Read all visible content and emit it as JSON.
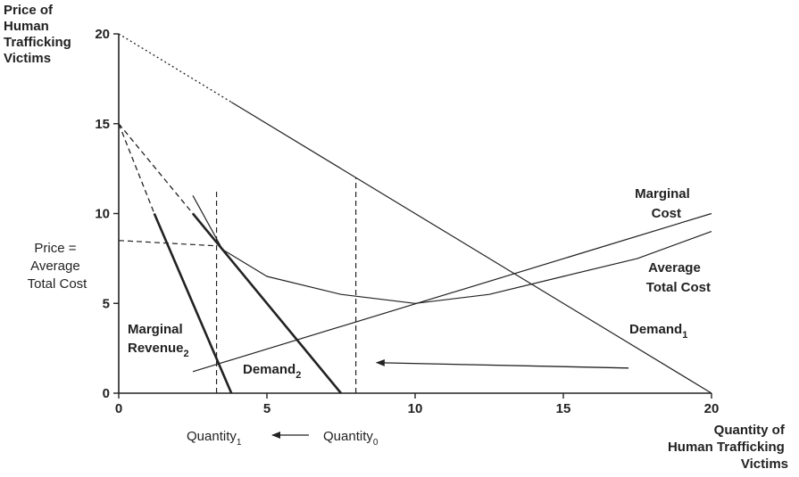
{
  "chart_data": {
    "type": "line",
    "ylabel_lines": [
      "Price of",
      "Human",
      "Trafficking",
      "Victims"
    ],
    "xlabel_lines": [
      "Quantity of",
      "Human Trafficking",
      "Victims"
    ],
    "xlim": [
      0,
      20
    ],
    "ylim": [
      0,
      20
    ],
    "x_ticks": [
      0,
      5,
      10,
      15,
      20
    ],
    "y_ticks": [
      0,
      5,
      10,
      15,
      20
    ],
    "grid": false,
    "series": [
      {
        "name": "Demand1",
        "style": "solid",
        "dashed_segment": [
          [
            0,
            20
          ],
          [
            3.8,
            16.2
          ]
        ],
        "points": [
          [
            3.8,
            16.2
          ],
          [
            20,
            0
          ]
        ]
      },
      {
        "name": "Demand2",
        "style": "bold",
        "dashed_segment": [
          [
            0,
            15
          ],
          [
            2.5,
            10
          ]
        ],
        "points": [
          [
            2.5,
            10
          ],
          [
            7.5,
            0
          ]
        ]
      },
      {
        "name": "Marginal Revenue2",
        "style": "bold",
        "dashed_segment": [
          [
            0,
            15
          ],
          [
            1.2,
            10
          ]
        ],
        "points": [
          [
            1.2,
            10
          ],
          [
            3.8,
            0
          ]
        ]
      },
      {
        "name": "Marginal Cost",
        "style": "solid",
        "points": [
          [
            2.5,
            1.2
          ],
          [
            20,
            10
          ]
        ]
      },
      {
        "name": "Average Total Cost",
        "style": "solid",
        "points": [
          [
            2.5,
            11
          ],
          [
            3.5,
            8
          ],
          [
            5,
            6.5
          ],
          [
            7.5,
            5.5
          ],
          [
            10,
            5
          ],
          [
            12.5,
            5.5
          ],
          [
            15,
            6.5
          ],
          [
            17.5,
            7.5
          ],
          [
            20,
            9
          ]
        ]
      }
    ],
    "reference_lines": [
      {
        "type": "horizontal",
        "style": "dashed",
        "from": [
          0,
          8.5
        ],
        "to": [
          3.3,
          8.2
        ]
      },
      {
        "type": "vertical",
        "style": "dashed",
        "x": 3.3,
        "from_y": 0,
        "to_y": 11.3
      },
      {
        "type": "vertical",
        "style": "dashed",
        "x": 8,
        "from_y": 0,
        "to_y": 12
      }
    ],
    "arrows": [
      {
        "from": [
          17.2,
          1.4
        ],
        "to": [
          8.7,
          1.7
        ]
      }
    ],
    "annotations": {
      "marginal_cost": [
        "Marginal",
        "Cost"
      ],
      "average_total_cost": [
        "Average",
        "Total Cost"
      ],
      "demand1": {
        "base": "Demand",
        "sub": "1"
      },
      "demand2": {
        "base": "Demand",
        "sub": "2"
      },
      "marginal_revenue2": {
        "line1": "Marginal",
        "base": "Revenue",
        "sub": "2"
      },
      "price_eq_atc": [
        "Price =",
        "Average",
        "Total Cost"
      ],
      "quantity1": {
        "base": "Quantity",
        "sub": "1"
      },
      "quantity0": {
        "base": "Quantity",
        "sub": "0"
      }
    }
  }
}
